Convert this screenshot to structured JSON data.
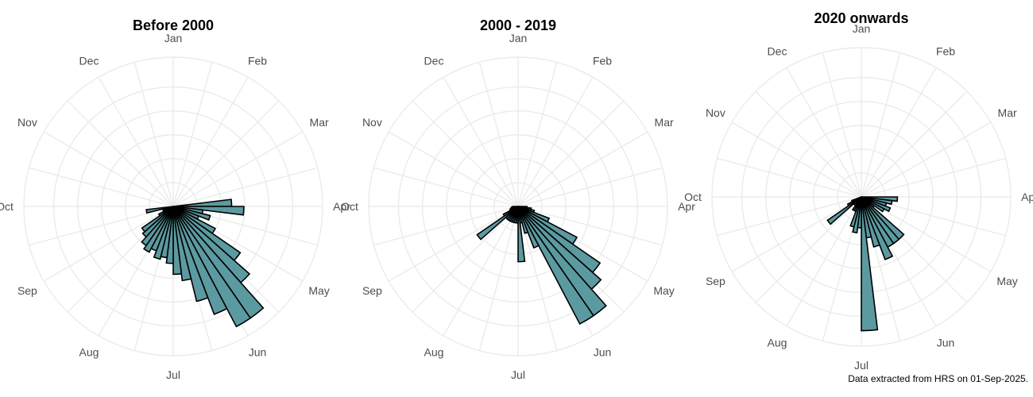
{
  "caption": "Data extracted from HRS on 01-Sep-2025.",
  "colors": {
    "bar_fill": "#5b9aa0",
    "bar_stroke": "#000000",
    "grid": "#ebebeb",
    "label": "#4d4d4d"
  },
  "chart_data": [
    {
      "type": "bar",
      "coordinate_system": "polar",
      "title": "Before 2000",
      "months": [
        "Jan",
        "Feb",
        "Mar",
        "Apr",
        "May",
        "Jun",
        "Jul",
        "Aug",
        "Sep",
        "Oct",
        "Nov",
        "Dec"
      ],
      "grid": true,
      "week_bins": [
        {
          "week": 13,
          "value": 43
        },
        {
          "week": 14,
          "value": 52
        },
        {
          "week": 15,
          "value": 22
        },
        {
          "week": 16,
          "value": 28
        },
        {
          "week": 17,
          "value": 20
        },
        {
          "week": 18,
          "value": 35
        },
        {
          "week": 19,
          "value": 60
        },
        {
          "week": 20,
          "value": 75
        },
        {
          "week": 21,
          "value": 100
        },
        {
          "week": 22,
          "value": 100
        },
        {
          "week": 23,
          "value": 85
        },
        {
          "week": 24,
          "value": 72
        },
        {
          "week": 25,
          "value": 55
        },
        {
          "week": 26,
          "value": 50
        },
        {
          "week": 27,
          "value": 42
        },
        {
          "week": 28,
          "value": 38
        },
        {
          "week": 29,
          "value": 40
        },
        {
          "week": 30,
          "value": 35
        },
        {
          "week": 31,
          "value": 38
        },
        {
          "week": 32,
          "value": 35
        },
        {
          "week": 33,
          "value": 30
        },
        {
          "week": 34,
          "value": 28
        },
        {
          "week": 35,
          "value": 12
        },
        {
          "week": 36,
          "value": 8
        },
        {
          "week": 37,
          "value": 6
        },
        {
          "week": 38,
          "value": 20
        }
      ],
      "rmax": 110
    },
    {
      "type": "bar",
      "coordinate_system": "polar",
      "title": "2000 - 2019",
      "months": [
        "Jan",
        "Feb",
        "Mar",
        "Apr",
        "May",
        "Jun",
        "Jul",
        "Aug",
        "Sep",
        "Oct",
        "Nov",
        "Dec"
      ],
      "grid": true,
      "week_bins": [
        {
          "week": 14,
          "value": 8
        },
        {
          "week": 15,
          "value": 12
        },
        {
          "week": 16,
          "value": 15
        },
        {
          "week": 17,
          "value": 30
        },
        {
          "week": 18,
          "value": 60
        },
        {
          "week": 19,
          "value": 90
        },
        {
          "week": 20,
          "value": 100
        },
        {
          "week": 21,
          "value": 120
        },
        {
          "week": 22,
          "value": 120
        },
        {
          "week": 23,
          "value": 40
        },
        {
          "week": 24,
          "value": 25
        },
        {
          "week": 25,
          "value": 15
        },
        {
          "week": 26,
          "value": 50
        },
        {
          "week": 27,
          "value": 15
        },
        {
          "week": 28,
          "value": 15
        },
        {
          "week": 29,
          "value": 15
        },
        {
          "week": 30,
          "value": 15
        },
        {
          "week": 31,
          "value": 15
        },
        {
          "week": 32,
          "value": 15
        },
        {
          "week": 33,
          "value": 15
        },
        {
          "week": 34,
          "value": 45
        },
        {
          "week": 35,
          "value": 15
        },
        {
          "week": 36,
          "value": 8
        },
        {
          "week": 37,
          "value": 7
        },
        {
          "week": 38,
          "value": 6
        },
        {
          "week": 39,
          "value": 5
        }
      ],
      "rmax": 135
    },
    {
      "type": "bar",
      "coordinate_system": "polar",
      "title": "2020 onwards",
      "months": [
        "Jan",
        "Feb",
        "Mar",
        "Apr",
        "May",
        "Jun",
        "Jul",
        "Aug",
        "Sep",
        "Oct",
        "Nov",
        "Dec"
      ],
      "grid": true,
      "week_bins": [
        {
          "week": 14,
          "value": 7
        },
        {
          "week": 15,
          "value": 6
        },
        {
          "week": 16,
          "value": 5
        },
        {
          "week": 17,
          "value": 6
        },
        {
          "week": 18,
          "value": 5
        },
        {
          "week": 19,
          "value": 3
        },
        {
          "week": 20,
          "value": 11
        },
        {
          "week": 21,
          "value": 11
        },
        {
          "week": 22,
          "value": 11
        },
        {
          "week": 23,
          "value": 13
        },
        {
          "week": 24,
          "value": 10
        },
        {
          "week": 25,
          "value": 8
        },
        {
          "week": 26,
          "value": 26
        },
        {
          "week": 27,
          "value": 6
        },
        {
          "week": 28,
          "value": 7
        },
        {
          "week": 29,
          "value": 6
        },
        {
          "week": 30,
          "value": 3
        },
        {
          "week": 31,
          "value": 3
        },
        {
          "week": 32,
          "value": 2
        },
        {
          "week": 33,
          "value": 2
        },
        {
          "week": 34,
          "value": 8
        },
        {
          "week": 35,
          "value": 3
        },
        {
          "week": 36,
          "value": 2
        }
      ],
      "rmax": 29
    }
  ]
}
